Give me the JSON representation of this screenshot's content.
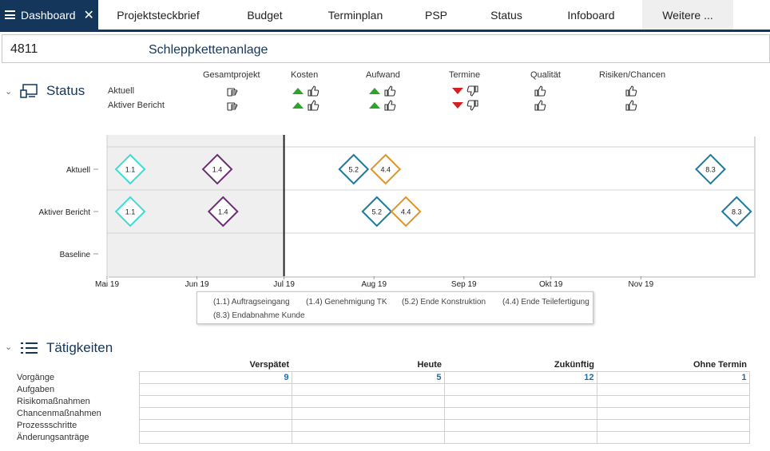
{
  "tabs": {
    "active": "Dashboard",
    "items": [
      "Projektsteckbrief",
      "Budget",
      "Terminplan",
      "PSP",
      "Status",
      "Infoboard",
      "Weitere ..."
    ]
  },
  "project": {
    "number": "4811",
    "name": "Schleppkettenanlage"
  },
  "status": {
    "title": "Status",
    "columns": [
      "Gesamtprojekt",
      "Kosten",
      "Aufwand",
      "Termine",
      "Qualität",
      "Risiken/Chancen"
    ],
    "rows": [
      {
        "label": "Aktuell",
        "cells": [
          "hand-point",
          "up-good",
          "up-good",
          "down-bad",
          "thumb-up",
          "thumb-up"
        ]
      },
      {
        "label": "Aktiver Bericht",
        "cells": [
          "hand-point",
          "up-good",
          "up-good",
          "down-bad",
          "thumb-up",
          "thumb-up"
        ]
      }
    ],
    "colors": {
      "good": "#2fa12f",
      "bad": "#d42020"
    }
  },
  "chart_data": {
    "type": "scatter",
    "categories": [
      "Aktuell",
      "Aktiver Bericht",
      "Baseline"
    ],
    "x_ticks": [
      "Mai 19",
      "Jun 19",
      "Jul 19",
      "Aug 19",
      "Sep 19",
      "Okt 19",
      "Nov 19"
    ],
    "x_range": [
      "2019-05-01",
      "2019-12-10"
    ],
    "today": "2019-07-01",
    "series": [
      {
        "name": "Aktuell",
        "points": [
          {
            "label": "1.1",
            "date": "2019-05-09",
            "color": "#3fdbd6"
          },
          {
            "label": "1.4",
            "date": "2019-06-08",
            "color": "#6b2f73"
          },
          {
            "label": "5.2",
            "date": "2019-07-25",
            "color": "#1f7a9b"
          },
          {
            "label": "4.4",
            "date": "2019-08-05",
            "color": "#e0952a"
          },
          {
            "label": "8.3",
            "date": "2019-11-25",
            "color": "#1f7a9b"
          }
        ]
      },
      {
        "name": "Aktiver Bericht",
        "points": [
          {
            "label": "1.1",
            "date": "2019-05-09",
            "color": "#3fdbd6"
          },
          {
            "label": "1.4",
            "date": "2019-06-10",
            "color": "#6b2f73"
          },
          {
            "label": "5.2",
            "date": "2019-08-02",
            "color": "#1f7a9b"
          },
          {
            "label": "4.4",
            "date": "2019-08-12",
            "color": "#e0952a"
          },
          {
            "label": "8.3",
            "date": "2019-12-04",
            "color": "#1f7a9b"
          }
        ]
      },
      {
        "name": "Baseline",
        "points": []
      }
    ],
    "legend": [
      "(1.1) Auftragseingang",
      "(1.4) Genehmigung TK",
      "(5.2) Ende Konstruktion",
      "(4.4) Ende Teilefertigung",
      "(8.3) Endabnahme Kunde"
    ]
  },
  "activities": {
    "title": "Tätigkeiten",
    "columns": [
      "Verspätet",
      "Heute",
      "Zukünftig",
      "Ohne Termin"
    ],
    "rows": [
      {
        "label": "Vorgänge",
        "values": [
          "9",
          "5",
          "12",
          "1"
        ]
      },
      {
        "label": "Aufgaben",
        "values": [
          "",
          "",
          "",
          ""
        ]
      },
      {
        "label": "Risikomaßnahmen",
        "values": [
          "",
          "",
          "",
          ""
        ]
      },
      {
        "label": "Chancenmaßnahmen",
        "values": [
          "",
          "",
          "",
          ""
        ]
      },
      {
        "label": "Prozessschritte",
        "values": [
          "",
          "",
          "",
          ""
        ]
      },
      {
        "label": "Änderungsanträge",
        "values": [
          "",
          "",
          "",
          ""
        ]
      }
    ]
  }
}
